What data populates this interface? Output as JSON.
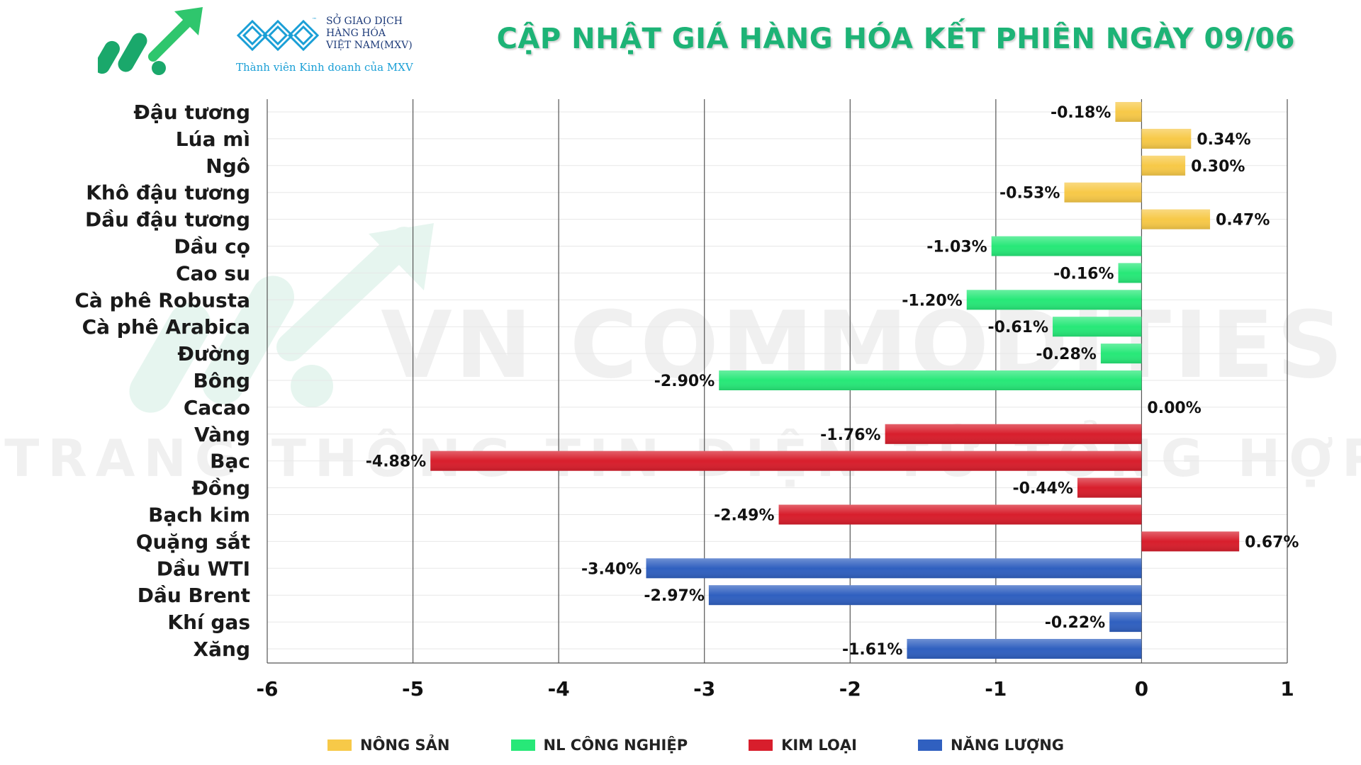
{
  "header": {
    "exchange_name_lines": [
      "SỞ GIAO DỊCH",
      "HÀNG HÓA",
      "VIỆT NAM(MXV)"
    ],
    "trademark": "™",
    "member_text": "Thành viên Kinh doanh của MXV"
  },
  "watermark": {
    "line1": "VN COMMODITIES",
    "line2": "TRANG THÔNG TIN ĐIỆN TỬ TỔNG HỢP"
  },
  "colors": {
    "nong_san": "#f7c948",
    "nl_cong_nghiep": "#27e878",
    "kim_loai": "#d81e2c",
    "nang_luong": "#3060c0",
    "title": "#1db376",
    "brand_green": "#1aa86b",
    "brand_blue": "#1a9fd6"
  },
  "chart_data": {
    "type": "bar",
    "orientation": "horizontal",
    "title": "CẬP NHẬT GIÁ HÀNG HÓA KẾT PHIÊN NGÀY 09/06",
    "xlim": [
      -6,
      1
    ],
    "x_ticks": [
      "-6",
      "-5",
      "-4",
      "-3",
      "-2",
      "-1",
      "0",
      "1"
    ],
    "grid": true,
    "legend_position": "bottom",
    "legend": [
      {
        "key": "nong_san",
        "label": "NÔNG SẢN"
      },
      {
        "key": "nl_cong_nghiep",
        "label": "NL CÔNG NGHIỆP"
      },
      {
        "key": "kim_loai",
        "label": "KIM LOẠI"
      },
      {
        "key": "nang_luong",
        "label": "NĂNG LƯỢNG"
      }
    ],
    "categories": [
      "Đậu tương",
      "Lúa mì",
      "Ngô",
      "Khô đậu tương",
      "Dầu đậu tương",
      "Dầu cọ",
      "Cao su",
      "Cà phê Robusta",
      "Cà phê Arabica",
      "Đường",
      "Bông",
      "Cacao",
      "Vàng",
      "Bạc",
      "Đồng",
      "Bạch kim",
      "Quặng sắt",
      "Dầu WTI",
      "Dầu Brent",
      "Khí gas",
      "Xăng"
    ],
    "values": [
      -0.18,
      0.34,
      0.3,
      -0.53,
      0.47,
      -1.03,
      -0.16,
      -1.2,
      -0.61,
      -0.28,
      -2.9,
      0.0,
      -1.76,
      -4.88,
      -0.44,
      -2.49,
      0.67,
      -3.4,
      -2.97,
      -0.22,
      -1.61
    ],
    "value_labels": [
      "-0.18%",
      "0.34%",
      "0.30%",
      "-0.53%",
      "0.47%",
      "-1.03%",
      "-0.16%",
      "-1.20%",
      "-0.61%",
      "-0.28%",
      "-2.90%",
      "0.00%",
      "-1.76%",
      "-4.88%",
      "-0.44%",
      "-2.49%",
      "0.67%",
      "-3.40%",
      "-2.97%",
      "-0.22%",
      "-1.61%"
    ],
    "groups": [
      "nong_san",
      "nong_san",
      "nong_san",
      "nong_san",
      "nong_san",
      "nl_cong_nghiep",
      "nl_cong_nghiep",
      "nl_cong_nghiep",
      "nl_cong_nghiep",
      "nl_cong_nghiep",
      "nl_cong_nghiep",
      "nl_cong_nghiep",
      "kim_loai",
      "kim_loai",
      "kim_loai",
      "kim_loai",
      "kim_loai",
      "nang_luong",
      "nang_luong",
      "nang_luong",
      "nang_luong"
    ]
  }
}
